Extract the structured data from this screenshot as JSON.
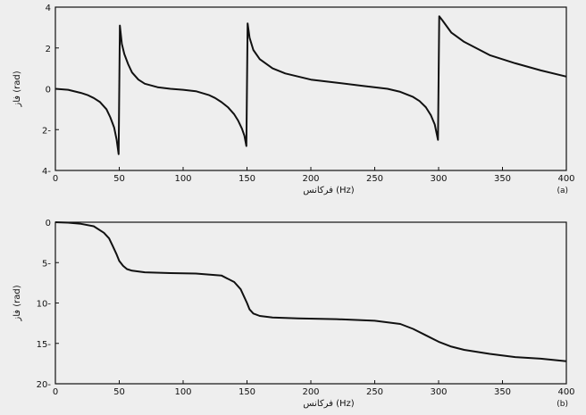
{
  "figure_background": "#eeeeee",
  "line_color": "#111111",
  "chart_data": [
    {
      "type": "line",
      "panel_label": "(a)",
      "xlabel": "فرکانس (Hz)",
      "ylabel": "فاز (rad)",
      "xlim": [
        0,
        400
      ],
      "ylim": [
        -4,
        4
      ],
      "x_ticks": [
        0,
        50,
        100,
        150,
        200,
        250,
        300,
        350,
        400
      ],
      "y_ticks": [
        -4,
        -2,
        0,
        2,
        4
      ],
      "y_tick_labels": [
        "4-",
        "2-",
        "0",
        "2",
        "4"
      ],
      "grid": false,
      "series": [
        {
          "x": [
            0,
            10,
            20,
            25,
            30,
            35,
            40,
            43,
            46,
            48,
            49.5,
            50.5,
            52,
            54,
            57,
            60,
            65,
            70,
            80,
            90,
            100,
            110,
            120,
            125,
            130,
            135,
            140,
            143,
            146,
            148,
            149.5,
            150.5,
            152,
            155,
            160,
            170,
            180,
            200,
            220,
            240,
            260,
            270,
            280,
            285,
            290,
            294,
            297,
            299.5,
            300.5,
            303,
            310,
            320,
            340,
            360,
            380,
            400
          ],
          "y": [
            0,
            -0.05,
            -0.2,
            -0.3,
            -0.45,
            -0.65,
            -1.0,
            -1.4,
            -1.9,
            -2.5,
            -3.2,
            3.1,
            2.2,
            1.7,
            1.2,
            0.8,
            0.45,
            0.25,
            0.08,
            0,
            -0.05,
            -0.12,
            -0.3,
            -0.45,
            -0.65,
            -0.9,
            -1.25,
            -1.55,
            -1.95,
            -2.3,
            -2.8,
            3.2,
            2.5,
            1.9,
            1.45,
            1.0,
            0.75,
            0.45,
            0.3,
            0.15,
            0,
            -0.15,
            -0.4,
            -0.6,
            -0.9,
            -1.3,
            -1.75,
            -2.5,
            3.55,
            3.35,
            2.75,
            2.3,
            1.65,
            1.25,
            0.9,
            0.6
          ]
        }
      ]
    },
    {
      "type": "line",
      "panel_label": "(b)",
      "xlabel": "فرکانس (Hz)",
      "ylabel": "فاز (rad)",
      "xlim": [
        0,
        400
      ],
      "ylim": [
        -20,
        0
      ],
      "x_ticks": [
        0,
        50,
        100,
        150,
        200,
        250,
        300,
        350,
        400
      ],
      "y_ticks": [
        -20,
        -15,
        -10,
        -5,
        0
      ],
      "y_tick_labels": [
        "20-",
        "15-",
        "10-",
        "5-",
        "0"
      ],
      "grid": false,
      "series": [
        {
          "x": [
            0,
            10,
            20,
            30,
            38,
            42,
            45,
            48,
            50,
            53,
            56,
            60,
            70,
            90,
            110,
            130,
            140,
            145,
            148,
            150,
            152,
            155,
            160,
            170,
            190,
            220,
            250,
            270,
            280,
            290,
            300,
            310,
            320,
            340,
            360,
            380,
            400
          ],
          "y": [
            0,
            -0.05,
            -0.2,
            -0.5,
            -1.3,
            -2.0,
            -3.0,
            -4.0,
            -4.8,
            -5.4,
            -5.8,
            -6.0,
            -6.2,
            -6.3,
            -6.35,
            -6.6,
            -7.4,
            -8.3,
            -9.3,
            -10.0,
            -10.8,
            -11.3,
            -11.6,
            -11.8,
            -11.9,
            -12.0,
            -12.2,
            -12.6,
            -13.2,
            -14.0,
            -14.8,
            -15.4,
            -15.8,
            -16.3,
            -16.7,
            -16.9,
            -17.2
          ]
        }
      ]
    }
  ]
}
